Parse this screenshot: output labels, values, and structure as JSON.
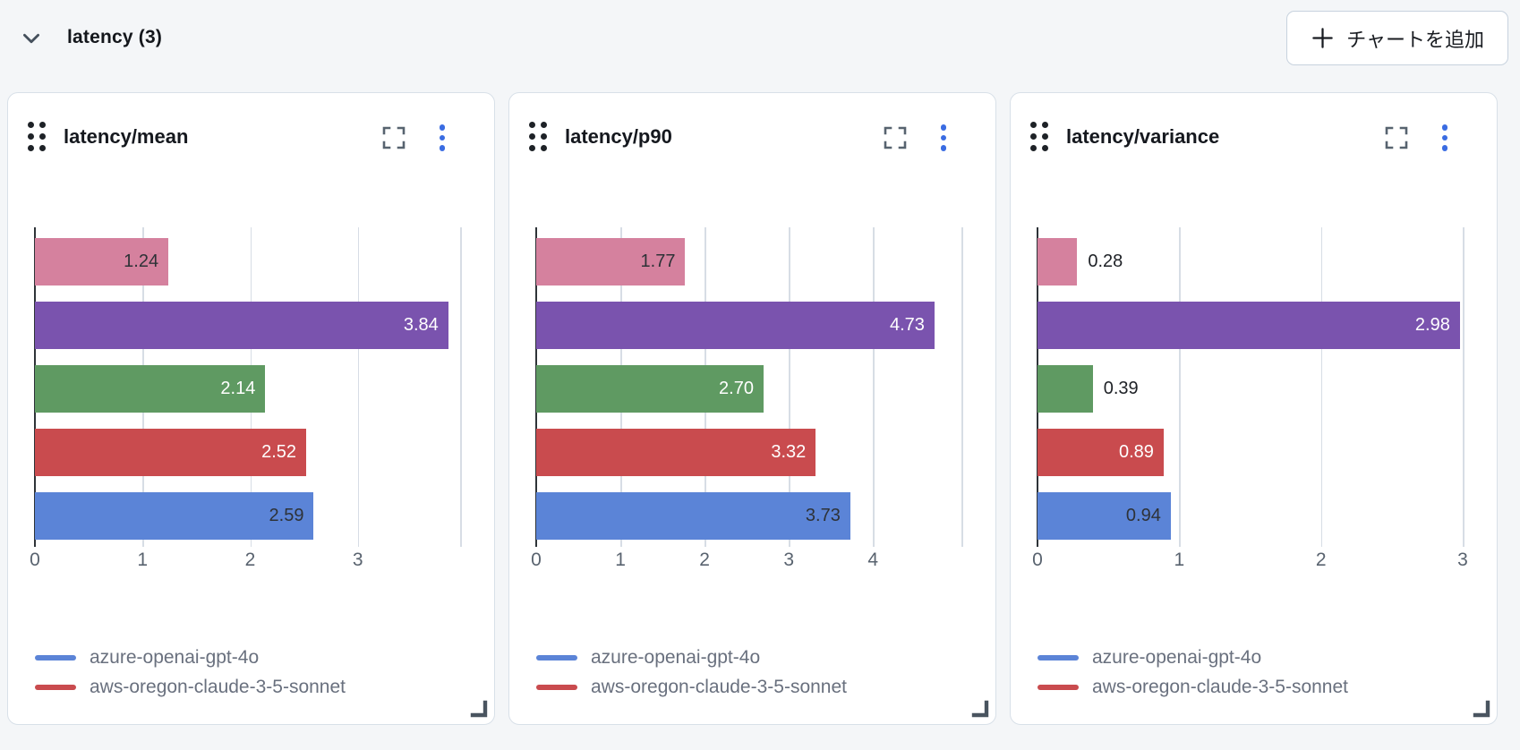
{
  "header": {
    "title": "latency (3)",
    "add_chart_button": "チャートを追加"
  },
  "colors": {
    "page_background": "#f4f6f8",
    "panel_background": "#ffffff",
    "accent_menu_blue": "#3a6ce2",
    "axis_line": "#2e3338",
    "gridline": "#d7dde5",
    "tick_text": "#59636f",
    "legend_text": "#69707e"
  },
  "bar_row_colors": [
    "#d5819e",
    "#7a53ae",
    "#5f9a62",
    "#c94b4e",
    "#5b84d7"
  ],
  "bar_label_inside_colors": [
    "#2e3237",
    "#ffffff",
    "#ffffff",
    "#ffffff",
    "#2e3237"
  ],
  "bar_label_outside_color": "#1e2126",
  "legend": [
    {
      "label": "azure-openai-gpt-4o",
      "color": "#5b84d7"
    },
    {
      "label": "aws-oregon-claude-3-5-sonnet",
      "color": "#c94b4e"
    }
  ],
  "chart_data": [
    {
      "type": "bar",
      "orientation": "horizontal",
      "title": "latency/mean",
      "values": [
        1.24,
        3.84,
        2.14,
        2.52,
        2.59
      ],
      "value_labels": [
        "1.24",
        "3.84",
        "2.14",
        "2.52",
        "2.59"
      ],
      "xticks": [
        0,
        1,
        2,
        3
      ],
      "xlim": [
        0,
        3.95
      ],
      "grid": true,
      "legend_position": "bottom-left"
    },
    {
      "type": "bar",
      "orientation": "horizontal",
      "title": "latency/p90",
      "values": [
        1.77,
        4.73,
        2.7,
        3.32,
        3.73
      ],
      "value_labels": [
        "1.77",
        "4.73",
        "2.70",
        "3.32",
        "3.73"
      ],
      "xticks": [
        0,
        1,
        2,
        3,
        4
      ],
      "xlim": [
        0,
        5.05
      ],
      "grid": true,
      "legend_position": "bottom-left"
    },
    {
      "type": "bar",
      "orientation": "horizontal",
      "title": "latency/variance",
      "values": [
        0.28,
        2.98,
        0.39,
        0.89,
        0.94
      ],
      "value_labels": [
        "0.28",
        "2.98",
        "0.39",
        "0.89",
        "0.94"
      ],
      "xticks": [
        0,
        1,
        2,
        3
      ],
      "xlim": [
        0,
        3.0
      ],
      "grid": true,
      "legend_position": "bottom-left"
    }
  ]
}
